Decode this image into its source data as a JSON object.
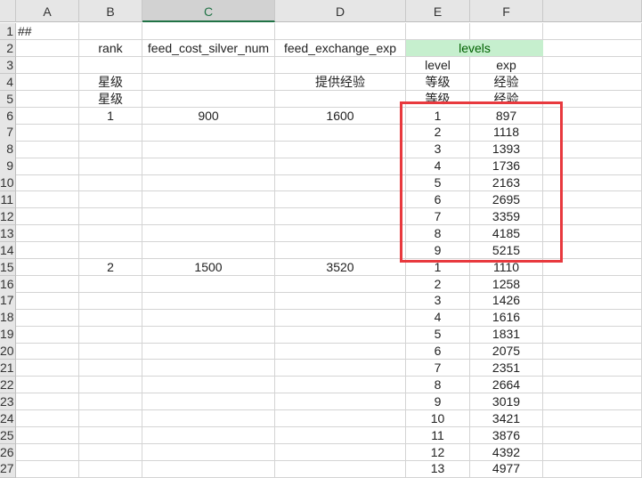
{
  "columns": [
    "A",
    "B",
    "C",
    "D",
    "E",
    "F",
    ""
  ],
  "selected_column": "C",
  "grid": {
    "rows": [
      [
        "##",
        "",
        "",
        "",
        "",
        "",
        ""
      ],
      [
        "",
        "rank",
        "feed_cost_silver_num",
        "feed_exchange_exp",
        "levels",
        "",
        ""
      ],
      [
        "",
        "",
        "",
        "",
        "level",
        "exp",
        ""
      ],
      [
        "",
        "星级",
        "",
        "提供经验",
        "等级",
        "经验",
        ""
      ],
      [
        "",
        "星级",
        "",
        "",
        "等级",
        "经验",
        ""
      ],
      [
        "",
        "1",
        "900",
        "1600",
        "1",
        "897",
        ""
      ],
      [
        "",
        "",
        "",
        "",
        "2",
        "1118",
        ""
      ],
      [
        "",
        "",
        "",
        "",
        "3",
        "1393",
        ""
      ],
      [
        "",
        "",
        "",
        "",
        "4",
        "1736",
        ""
      ],
      [
        "",
        "",
        "",
        "",
        "5",
        "2163",
        ""
      ],
      [
        "",
        "",
        "",
        "",
        "6",
        "2695",
        ""
      ],
      [
        "",
        "",
        "",
        "",
        "7",
        "3359",
        ""
      ],
      [
        "",
        "",
        "",
        "",
        "8",
        "4185",
        ""
      ],
      [
        "",
        "",
        "",
        "",
        "9",
        "5215",
        ""
      ],
      [
        "",
        "2",
        "1500",
        "3520",
        "1",
        "1110",
        ""
      ],
      [
        "",
        "",
        "",
        "",
        "2",
        "1258",
        ""
      ],
      [
        "",
        "",
        "",
        "",
        "3",
        "1426",
        ""
      ],
      [
        "",
        "",
        "",
        "",
        "4",
        "1616",
        ""
      ],
      [
        "",
        "",
        "",
        "",
        "5",
        "1831",
        ""
      ],
      [
        "",
        "",
        "",
        "",
        "6",
        "2075",
        ""
      ],
      [
        "",
        "",
        "",
        "",
        "7",
        "2351",
        ""
      ],
      [
        "",
        "",
        "",
        "",
        "8",
        "2664",
        ""
      ],
      [
        "",
        "",
        "",
        "",
        "9",
        "3019",
        ""
      ],
      [
        "",
        "",
        "",
        "",
        "10",
        "3421",
        ""
      ],
      [
        "",
        "",
        "",
        "",
        "11",
        "3876",
        ""
      ],
      [
        "",
        "",
        "",
        "",
        "12",
        "4392",
        ""
      ],
      [
        "",
        "",
        "",
        "",
        "13",
        "4977",
        ""
      ]
    ],
    "row_numbers": [
      "1",
      "2",
      "3",
      "4",
      "5",
      "6",
      "7",
      "8",
      "9",
      "10",
      "11",
      "12",
      "13",
      "14",
      "15",
      "16",
      "17",
      "18",
      "19",
      "20",
      "21",
      "22",
      "23",
      "24",
      "25",
      "26",
      "27"
    ]
  },
  "colors": {
    "levels_fill": "#c6efce",
    "levels_text": "#006100",
    "highlight_box": "#e8393e",
    "selected_header": "#217346"
  }
}
